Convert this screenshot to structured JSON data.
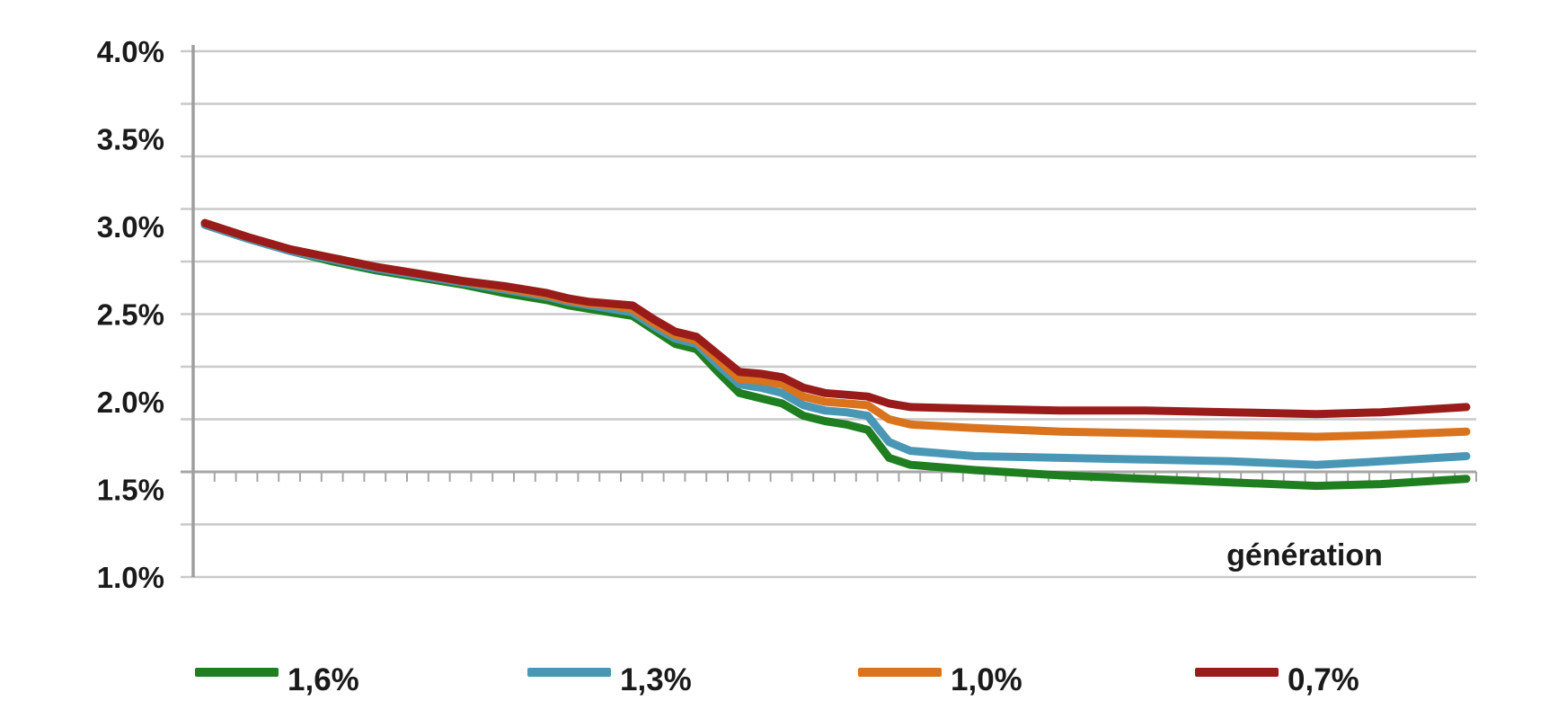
{
  "chart_data": {
    "type": "line",
    "title": "",
    "xlabel": "génération",
    "ylabel": "",
    "y_axis": {
      "min": 1.0,
      "max": 4.0,
      "unit": "%",
      "tick_values": [
        4.0,
        3.5,
        3.0,
        2.5,
        2.0,
        1.5,
        1.0
      ],
      "tick_labels": [
        "4.0%",
        "3.5%",
        "3.0%",
        "2.5%",
        "2.0%",
        "1.5%",
        "1.0%"
      ],
      "gridline_values": [
        4.0,
        3.7,
        3.4,
        3.1,
        2.8,
        2.5,
        2.2,
        1.9,
        1.6,
        1.3,
        1.0
      ],
      "gridline_interval": 0.3,
      "grid": true
    },
    "x_axis": {
      "label": "génération",
      "num_categories": 60,
      "tick_labels_shown": false,
      "category_axis_crosses_at": 1.6
    },
    "series": [
      {
        "name": "1,6%",
        "color": "#1f7e20",
        "points": [
          [
            0,
            3.01
          ],
          [
            2,
            2.93
          ],
          [
            4,
            2.86
          ],
          [
            6,
            2.8
          ],
          [
            8,
            2.75
          ],
          [
            10,
            2.71
          ],
          [
            12,
            2.67
          ],
          [
            14,
            2.62
          ],
          [
            16,
            2.58
          ],
          [
            17,
            2.55
          ],
          [
            18,
            2.53
          ],
          [
            19,
            2.51
          ],
          [
            20,
            2.49
          ],
          [
            21,
            2.41
          ],
          [
            22,
            2.33
          ],
          [
            23,
            2.3
          ],
          [
            24,
            2.17
          ],
          [
            25,
            2.05
          ],
          [
            26,
            2.02
          ],
          [
            27,
            1.99
          ],
          [
            28,
            1.92
          ],
          [
            29,
            1.89
          ],
          [
            30,
            1.87
          ],
          [
            31,
            1.84
          ],
          [
            32,
            1.68
          ],
          [
            33,
            1.64
          ],
          [
            36,
            1.61
          ],
          [
            40,
            1.58
          ],
          [
            44,
            1.56
          ],
          [
            48,
            1.54
          ],
          [
            52,
            1.52
          ],
          [
            55,
            1.53
          ],
          [
            59,
            1.56
          ]
        ]
      },
      {
        "name": "1,3%",
        "color": "#4a97b5",
        "points": [
          [
            0,
            3.01
          ],
          [
            2,
            2.93
          ],
          [
            4,
            2.86
          ],
          [
            6,
            2.81
          ],
          [
            8,
            2.76
          ],
          [
            10,
            2.72
          ],
          [
            12,
            2.68
          ],
          [
            14,
            2.64
          ],
          [
            16,
            2.6
          ],
          [
            17,
            2.57
          ],
          [
            18,
            2.55
          ],
          [
            19,
            2.53
          ],
          [
            20,
            2.51
          ],
          [
            21,
            2.43
          ],
          [
            22,
            2.36
          ],
          [
            23,
            2.33
          ],
          [
            24,
            2.21
          ],
          [
            25,
            2.1
          ],
          [
            26,
            2.08
          ],
          [
            27,
            2.05
          ],
          [
            28,
            1.98
          ],
          [
            29,
            1.95
          ],
          [
            30,
            1.94
          ],
          [
            31,
            1.92
          ],
          [
            32,
            1.77
          ],
          [
            33,
            1.72
          ],
          [
            36,
            1.69
          ],
          [
            40,
            1.68
          ],
          [
            44,
            1.67
          ],
          [
            48,
            1.66
          ],
          [
            52,
            1.64
          ],
          [
            55,
            1.66
          ],
          [
            59,
            1.69
          ]
        ]
      },
      {
        "name": "1,0%",
        "color": "#d9731e",
        "points": [
          [
            0,
            3.02
          ],
          [
            2,
            2.94
          ],
          [
            4,
            2.87
          ],
          [
            6,
            2.82
          ],
          [
            8,
            2.77
          ],
          [
            10,
            2.73
          ],
          [
            12,
            2.69
          ],
          [
            14,
            2.65
          ],
          [
            16,
            2.61
          ],
          [
            17,
            2.58
          ],
          [
            18,
            2.56
          ],
          [
            19,
            2.55
          ],
          [
            20,
            2.53
          ],
          [
            21,
            2.45
          ],
          [
            22,
            2.38
          ],
          [
            23,
            2.35
          ],
          [
            24,
            2.24
          ],
          [
            25,
            2.13
          ],
          [
            26,
            2.12
          ],
          [
            27,
            2.1
          ],
          [
            28,
            2.03
          ],
          [
            29,
            2.0
          ],
          [
            30,
            1.99
          ],
          [
            31,
            1.98
          ],
          [
            32,
            1.9
          ],
          [
            33,
            1.87
          ],
          [
            36,
            1.85
          ],
          [
            40,
            1.83
          ],
          [
            44,
            1.82
          ],
          [
            48,
            1.81
          ],
          [
            52,
            1.8
          ],
          [
            55,
            1.81
          ],
          [
            59,
            1.83
          ]
        ]
      },
      {
        "name": "0,7%",
        "color": "#9a1c1a",
        "points": [
          [
            0,
            3.02
          ],
          [
            2,
            2.94
          ],
          [
            4,
            2.87
          ],
          [
            6,
            2.82
          ],
          [
            8,
            2.77
          ],
          [
            10,
            2.73
          ],
          [
            12,
            2.69
          ],
          [
            14,
            2.66
          ],
          [
            16,
            2.62
          ],
          [
            17,
            2.59
          ],
          [
            18,
            2.57
          ],
          [
            19,
            2.56
          ],
          [
            20,
            2.55
          ],
          [
            21,
            2.47
          ],
          [
            22,
            2.4
          ],
          [
            23,
            2.37
          ],
          [
            24,
            2.27
          ],
          [
            25,
            2.17
          ],
          [
            26,
            2.16
          ],
          [
            27,
            2.14
          ],
          [
            28,
            2.08
          ],
          [
            29,
            2.05
          ],
          [
            30,
            2.04
          ],
          [
            31,
            2.03
          ],
          [
            32,
            1.99
          ],
          [
            33,
            1.97
          ],
          [
            36,
            1.96
          ],
          [
            40,
            1.95
          ],
          [
            44,
            1.95
          ],
          [
            48,
            1.94
          ],
          [
            52,
            1.93
          ],
          [
            55,
            1.94
          ],
          [
            59,
            1.97
          ]
        ]
      }
    ],
    "legend": {
      "position": "bottom",
      "items": [
        {
          "label": "1,6%",
          "color": "#1f7e20"
        },
        {
          "label": "1,3%",
          "color": "#4a97b5"
        },
        {
          "label": "1,0%",
          "color": "#d9731e"
        },
        {
          "label": "0,7%",
          "color": "#9a1c1a"
        }
      ]
    },
    "style": {
      "background": "#ffffff",
      "gridline_color": "#c9c9c9",
      "axis_color": "#a6a6a6",
      "y_axis_line_color": "#9e9e9e",
      "text_color": "#1a1a1a",
      "line_width": 9
    }
  }
}
